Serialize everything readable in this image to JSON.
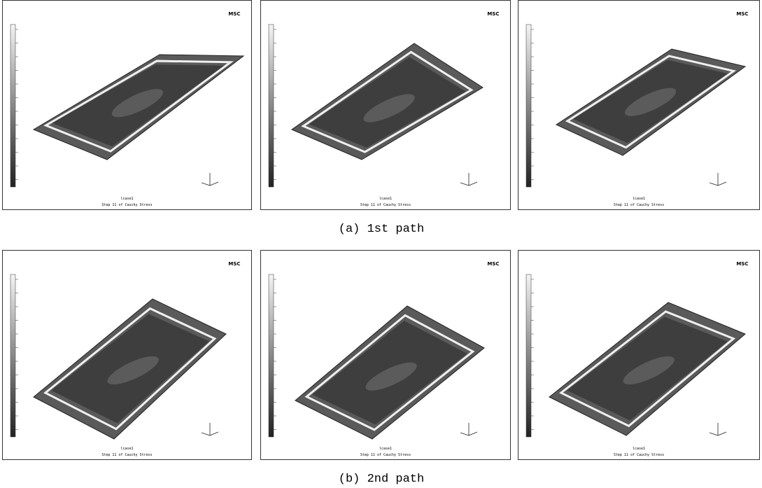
{
  "figure": {
    "rows": [
      {
        "caption": "(a) 1st path",
        "panels": [
          {
            "logo": "MSC",
            "job": "lcase1",
            "footer": "Step 11 of Cauchy Stress"
          },
          {
            "logo": "MSC",
            "job": "lcase1",
            "footer": "Step 11 of Cauchy Stress"
          },
          {
            "logo": "MSC",
            "job": "lcase1",
            "footer": "Step 11 of Cauchy Stress"
          }
        ]
      },
      {
        "caption": "(b) 2nd path",
        "panels": [
          {
            "logo": "MSC",
            "job": "lcase1",
            "footer": "Step 11 of Cauchy Stress"
          },
          {
            "logo": "MSC",
            "job": "lcase1",
            "footer": "Step 11 of Cauchy Stress"
          },
          {
            "logo": "MSC",
            "job": "lcase1",
            "footer": "Step 11 of Cauchy Stress"
          }
        ]
      }
    ]
  }
}
